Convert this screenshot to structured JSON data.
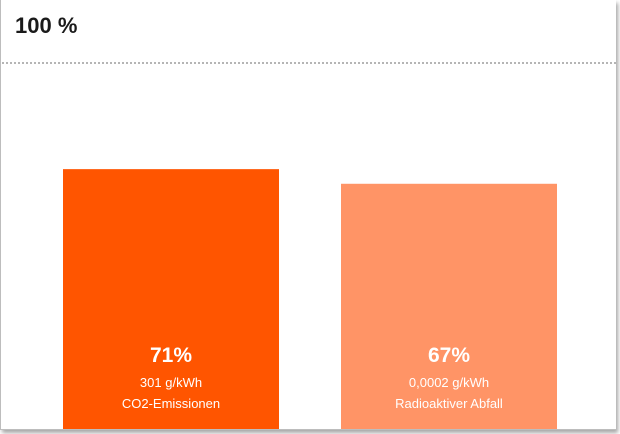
{
  "chart_data": {
    "type": "bar",
    "reference_label": "100 %",
    "reference_value": 100,
    "ylim": [
      0,
      100
    ],
    "grid": false,
    "categories": [
      "CO2-Emissionen",
      "Radioaktiver Abfall"
    ],
    "values": [
      71,
      67
    ],
    "value_labels": [
      "71%",
      "67%"
    ],
    "sub_labels": [
      "301 g/kWh",
      "0,0002 g/kWh"
    ],
    "colors": [
      "#ff5500",
      "#ff9466"
    ]
  }
}
